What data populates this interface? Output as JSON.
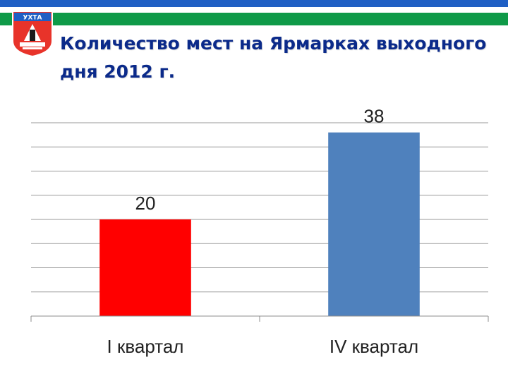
{
  "header": {
    "emblem_text": "УХТА",
    "colors": {
      "blue": "#1f5fc4",
      "green": "#0f9a48",
      "title": "#0b2a8a"
    },
    "title_line1": "Количество мест на Ярмарках выходного",
    "title_line2": "дня 2012 г."
  },
  "chart_data": {
    "type": "bar",
    "title": "",
    "categories": [
      "I квартал",
      "IV квартал"
    ],
    "values": [
      20,
      38
    ],
    "colors": [
      "#ff0000",
      "#4f81bd"
    ],
    "data_labels": [
      "20",
      "38"
    ],
    "ylim": [
      0,
      40
    ],
    "grid": true,
    "legend": "none",
    "xlabel": "",
    "ylabel": ""
  }
}
